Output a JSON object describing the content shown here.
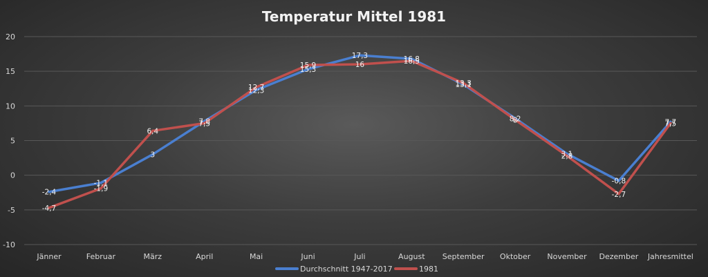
{
  "chart_data": {
    "type": "line",
    "title": "Temperatur Mittel 1981",
    "xlabel": "",
    "ylabel": "",
    "ylim": [
      -10,
      20
    ],
    "yticks": [
      20,
      15,
      10,
      5,
      0,
      -5,
      -10
    ],
    "grid": true,
    "legend_position": "bottom",
    "categories": [
      "Jänner",
      "Februar",
      "März",
      "April",
      "Mai",
      "Juni",
      "Juli",
      "August",
      "September",
      "Oktober",
      "November",
      "Dezember",
      "Jahresmittel"
    ],
    "series": [
      {
        "name": "Durchschnitt 1947-2017",
        "color": "#4a7fd0",
        "values": [
          -2.4,
          -1.1,
          3,
          7.8,
          12.3,
          15.3,
          17.3,
          16.8,
          13.1,
          8.2,
          3.1,
          -0.8,
          7.7
        ],
        "labels": [
          "-2,4",
          "-1,1",
          "3",
          "7,8",
          "12,3",
          "15,3",
          "17,3",
          "16,8",
          "13,1",
          "8,2",
          "3,1",
          "-0,8",
          "7,7"
        ]
      },
      {
        "name": "1981",
        "color": "#c0504d",
        "values": [
          -4.7,
          -1.9,
          6.4,
          7.5,
          12.7,
          15.9,
          16,
          16.5,
          13.3,
          8,
          2.8,
          -2.7,
          7.5
        ],
        "labels": [
          "-4,7",
          "-1,9",
          "6,4",
          "7,5",
          "12,7",
          "15,9",
          "16",
          "16,5",
          "13,3",
          "8",
          "2,8",
          "-2,7",
          "7,5"
        ]
      }
    ]
  }
}
